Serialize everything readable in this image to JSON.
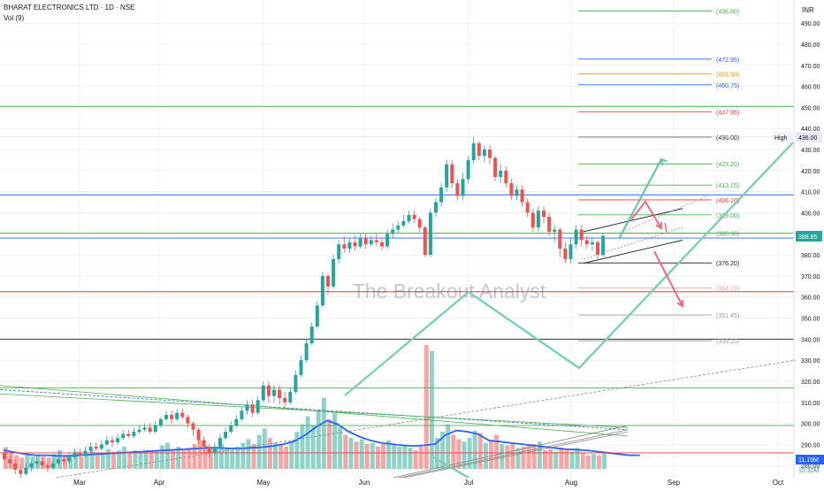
{
  "header": {
    "symbol": "BHARAT ELECTRONICS LTD · 1D · NSE",
    "volume_label": "Vol (9)",
    "currency": "INR"
  },
  "watermark": "The Breakout Analyst",
  "colors": {
    "up": "#26a69a",
    "down": "#ef5350",
    "vol_up": "#8fd3c8",
    "vol_down": "#f4a6a4",
    "vol_ma": "#2962ff",
    "grid": "#e6e8ec",
    "green_line": "#4caf50",
    "blue_line": "#2962ff",
    "red_line": "#f23645",
    "black_line": "#131722",
    "pattern": "#7ccfb5",
    "arrow_up": "#5fc3a4",
    "arrow_down": "#ef6a78",
    "orange": "#ff9800"
  },
  "chart_data": {
    "type": "candlestick",
    "title": "BHARAT ELECTRONICS LTD · 1D · NSE",
    "y_axis": {
      "unit": "INR",
      "range": [
        270,
        501
      ],
      "ticks": [
        490,
        480,
        470,
        460,
        450,
        440,
        430,
        420,
        410,
        400,
        390,
        380,
        370,
        360,
        350,
        340,
        330,
        320,
        310,
        300,
        290,
        280
      ]
    },
    "x_axis": {
      "ticks": [
        "Mar",
        "Apr",
        "May",
        "Jun",
        "Jul",
        "Aug",
        "Sep",
        "Oct"
      ]
    },
    "last_price": "388.85",
    "high_label": "High",
    "high_value": "436.00",
    "volume_readout": "11.15M",
    "volume_readout_2": "10.32M",
    "price_levels": [
      {
        "label": "(495.80)",
        "value": 495.8,
        "color": "#4caf50"
      },
      {
        "label": "(472.95)",
        "value": 472.95,
        "color": "#2962ff"
      },
      {
        "label": "(465.90)",
        "value": 465.9,
        "color": "#ff9800"
      },
      {
        "label": "(460.75)",
        "value": 460.75,
        "color": "#2962ff"
      },
      {
        "label": "(447.95)",
        "value": 447.95,
        "color": "#f23645"
      },
      {
        "label": "(436.00)",
        "value": 436.0,
        "color": "#131722"
      },
      {
        "label": "(423.20)",
        "value": 423.2,
        "color": "#4caf50"
      },
      {
        "label": "(413.15)",
        "value": 413.15,
        "color": "#4caf50"
      },
      {
        "label": "(406.10)",
        "value": 406.1,
        "color": "#f23645"
      },
      {
        "label": "(399.00)",
        "value": 399.0,
        "color": "#4caf50"
      },
      {
        "label": "(390.30)",
        "value": 390.3,
        "color": "#4caf50"
      },
      {
        "label": "(376.20)",
        "value": 376.2,
        "color": "#131722"
      },
      {
        "label": "(364.25)",
        "value": 364.25,
        "color": "#f4a6a4"
      },
      {
        "label": "(351.45)",
        "value": 351.45,
        "color": "#9e9e9e"
      },
      {
        "label": "(339.25)",
        "value": 339.25,
        "color": "#9e9e9e"
      }
    ],
    "horizontal_lines": [
      {
        "value": 450.5,
        "color": "#4caf50"
      },
      {
        "value": 408.5,
        "color": "#2962ff"
      },
      {
        "value": 390.3,
        "color": "#4caf50"
      },
      {
        "value": 388.0,
        "color": "#2962ff"
      },
      {
        "value": 362.5,
        "color": "#f23645"
      },
      {
        "value": 340.0,
        "color": "#131722"
      },
      {
        "value": 316.8,
        "color": "#4caf50"
      },
      {
        "value": 299.0,
        "color": "#4caf50"
      },
      {
        "value": 286.0,
        "color": "#f23645"
      }
    ],
    "candles": [
      [
        286,
        283,
        287,
        282
      ],
      [
        283,
        281,
        285,
        279
      ],
      [
        281,
        278,
        283,
        276
      ],
      [
        278,
        276,
        280,
        274
      ],
      [
        276,
        279,
        281,
        275
      ],
      [
        279,
        281,
        282,
        277
      ],
      [
        281,
        282,
        284,
        279
      ],
      [
        282,
        280,
        284,
        278
      ],
      [
        280,
        279,
        281,
        277
      ],
      [
        279,
        281,
        283,
        278
      ],
      [
        281,
        283,
        285,
        280
      ],
      [
        283,
        282,
        285,
        280
      ],
      [
        282,
        284,
        286,
        281
      ],
      [
        284,
        286,
        288,
        283
      ],
      [
        286,
        285,
        288,
        284
      ],
      [
        285,
        287,
        289,
        284
      ],
      [
        287,
        289,
        291,
        286
      ],
      [
        289,
        288,
        291,
        287
      ],
      [
        288,
        290,
        292,
        287
      ],
      [
        290,
        292,
        294,
        289
      ],
      [
        292,
        291,
        294,
        289
      ],
      [
        291,
        293,
        295,
        290
      ],
      [
        293,
        295,
        297,
        292
      ],
      [
        295,
        294,
        297,
        293
      ],
      [
        294,
        296,
        298,
        293
      ],
      [
        296,
        297,
        299,
        295
      ],
      [
        297,
        298,
        300,
        296
      ],
      [
        298,
        296,
        300,
        295
      ],
      [
        296,
        299,
        301,
        295
      ],
      [
        299,
        302,
        303,
        298
      ],
      [
        302,
        304,
        306,
        301
      ],
      [
        304,
        302,
        306,
        300
      ],
      [
        302,
        305,
        307,
        301
      ],
      [
        305,
        303,
        307,
        302
      ],
      [
        303,
        300,
        304,
        298
      ],
      [
        300,
        297,
        301,
        294
      ],
      [
        297,
        292,
        298,
        290
      ],
      [
        292,
        289,
        294,
        286
      ],
      [
        289,
        286,
        290,
        284
      ],
      [
        286,
        289,
        291,
        285
      ],
      [
        289,
        293,
        295,
        288
      ],
      [
        293,
        296,
        298,
        292
      ],
      [
        296,
        299,
        301,
        295
      ],
      [
        299,
        302,
        304,
        298
      ],
      [
        302,
        306,
        308,
        301
      ],
      [
        306,
        309,
        311,
        304
      ],
      [
        309,
        305,
        311,
        303
      ],
      [
        305,
        311,
        313,
        304
      ],
      [
        311,
        318,
        320,
        310
      ],
      [
        318,
        313,
        320,
        310
      ],
      [
        313,
        316,
        318,
        310
      ],
      [
        316,
        312,
        318,
        309
      ],
      [
        312,
        310,
        315,
        307
      ],
      [
        310,
        315,
        317,
        309
      ],
      [
        315,
        323,
        325,
        314
      ],
      [
        323,
        330,
        332,
        322
      ],
      [
        330,
        338,
        340,
        329
      ],
      [
        338,
        346,
        348,
        337
      ],
      [
        346,
        356,
        358,
        345
      ],
      [
        356,
        370,
        372,
        355
      ],
      [
        370,
        365,
        371,
        361
      ],
      [
        365,
        378,
        380,
        364
      ],
      [
        378,
        385,
        387,
        376
      ],
      [
        385,
        383,
        389,
        381
      ],
      [
        383,
        386,
        388,
        381
      ],
      [
        386,
        384,
        389,
        382
      ],
      [
        384,
        388,
        390,
        383
      ],
      [
        388,
        385,
        390,
        383
      ],
      [
        385,
        387,
        389,
        384
      ],
      [
        387,
        386,
        390,
        384
      ],
      [
        386,
        384,
        388,
        382
      ],
      [
        384,
        390,
        392,
        383
      ],
      [
        390,
        392,
        395,
        388
      ],
      [
        392,
        394,
        396,
        390
      ],
      [
        394,
        396,
        399,
        393
      ],
      [
        396,
        399,
        401,
        395
      ],
      [
        399,
        397,
        401,
        395
      ],
      [
        397,
        393,
        398,
        391
      ],
      [
        393,
        380,
        394,
        379
      ],
      [
        380,
        400,
        402,
        379
      ],
      [
        400,
        405,
        407,
        398
      ],
      [
        405,
        412,
        414,
        403
      ],
      [
        412,
        423,
        425,
        410
      ],
      [
        423,
        414,
        425,
        412
      ],
      [
        414,
        408,
        416,
        406
      ],
      [
        408,
        416,
        419,
        406
      ],
      [
        416,
        425,
        427,
        414
      ],
      [
        425,
        433,
        436,
        423
      ],
      [
        433,
        427,
        434,
        425
      ],
      [
        427,
        430,
        432,
        424
      ],
      [
        430,
        426,
        432,
        423
      ],
      [
        426,
        417,
        427,
        415
      ],
      [
        417,
        420,
        423,
        414
      ],
      [
        420,
        414,
        422,
        412
      ],
      [
        414,
        408,
        416,
        406
      ],
      [
        408,
        411,
        413,
        406
      ],
      [
        411,
        405,
        413,
        403
      ],
      [
        405,
        400,
        407,
        398
      ],
      [
        400,
        393,
        402,
        391
      ],
      [
        393,
        401,
        403,
        391
      ],
      [
        401,
        398,
        403,
        395
      ],
      [
        398,
        391,
        400,
        389
      ],
      [
        391,
        392,
        394,
        386
      ],
      [
        392,
        383,
        393,
        379
      ],
      [
        383,
        378,
        386,
        376
      ],
      [
        378,
        385,
        388,
        376
      ],
      [
        385,
        392,
        394,
        383
      ],
      [
        392,
        387,
        394,
        384
      ],
      [
        387,
        385,
        389,
        383
      ],
      [
        385,
        386,
        388,
        382
      ],
      [
        386,
        380,
        387,
        378
      ],
      [
        380,
        389,
        390,
        379
      ]
    ],
    "volume": [
      [
        0.35,
        0
      ],
      [
        0.28,
        0
      ],
      [
        0.22,
        0
      ],
      [
        0.18,
        0
      ],
      [
        0.25,
        1
      ],
      [
        0.2,
        1
      ],
      [
        0.22,
        1
      ],
      [
        0.2,
        0
      ],
      [
        0.18,
        0
      ],
      [
        0.24,
        1
      ],
      [
        0.3,
        1
      ],
      [
        0.2,
        0
      ],
      [
        0.22,
        1
      ],
      [
        0.28,
        1
      ],
      [
        0.2,
        0
      ],
      [
        0.24,
        1
      ],
      [
        0.3,
        1
      ],
      [
        0.22,
        0
      ],
      [
        0.25,
        1
      ],
      [
        0.32,
        1
      ],
      [
        0.28,
        0
      ],
      [
        0.3,
        1
      ],
      [
        0.36,
        1
      ],
      [
        0.28,
        0
      ],
      [
        0.3,
        1
      ],
      [
        0.26,
        1
      ],
      [
        0.3,
        1
      ],
      [
        0.28,
        0
      ],
      [
        0.3,
        1
      ],
      [
        0.38,
        1
      ],
      [
        0.42,
        1
      ],
      [
        0.32,
        0
      ],
      [
        0.36,
        1
      ],
      [
        0.3,
        0
      ],
      [
        0.34,
        0
      ],
      [
        0.4,
        0
      ],
      [
        0.46,
        0
      ],
      [
        0.38,
        0
      ],
      [
        0.32,
        0
      ],
      [
        0.35,
        1
      ],
      [
        0.4,
        1
      ],
      [
        0.34,
        1
      ],
      [
        0.3,
        1
      ],
      [
        0.36,
        1
      ],
      [
        0.42,
        1
      ],
      [
        0.48,
        1
      ],
      [
        0.4,
        0
      ],
      [
        0.55,
        1
      ],
      [
        0.65,
        1
      ],
      [
        0.5,
        0
      ],
      [
        0.42,
        1
      ],
      [
        0.4,
        0
      ],
      [
        0.36,
        0
      ],
      [
        0.44,
        1
      ],
      [
        0.6,
        1
      ],
      [
        0.72,
        1
      ],
      [
        0.85,
        1
      ],
      [
        0.7,
        1
      ],
      [
        0.95,
        1
      ],
      [
        1.15,
        1
      ],
      [
        0.8,
        0
      ],
      [
        0.9,
        1
      ],
      [
        0.68,
        1
      ],
      [
        0.55,
        0
      ],
      [
        0.5,
        1
      ],
      [
        0.44,
        0
      ],
      [
        0.48,
        1
      ],
      [
        0.4,
        0
      ],
      [
        0.42,
        1
      ],
      [
        0.36,
        0
      ],
      [
        0.4,
        0
      ],
      [
        0.46,
        1
      ],
      [
        0.4,
        1
      ],
      [
        0.36,
        1
      ],
      [
        0.38,
        1
      ],
      [
        0.34,
        1
      ],
      [
        0.3,
        0
      ],
      [
        0.36,
        0
      ],
      [
        2.0,
        0
      ],
      [
        1.9,
        1
      ],
      [
        0.5,
        1
      ],
      [
        0.6,
        1
      ],
      [
        0.72,
        1
      ],
      [
        0.55,
        0
      ],
      [
        0.48,
        0
      ],
      [
        0.44,
        1
      ],
      [
        0.5,
        1
      ],
      [
        0.62,
        1
      ],
      [
        0.58,
        0
      ],
      [
        0.42,
        1
      ],
      [
        0.46,
        0
      ],
      [
        0.55,
        0
      ],
      [
        0.4,
        1
      ],
      [
        0.38,
        0
      ],
      [
        0.42,
        0
      ],
      [
        0.34,
        1
      ],
      [
        0.36,
        0
      ],
      [
        0.38,
        0
      ],
      [
        0.4,
        0
      ],
      [
        0.44,
        1
      ],
      [
        0.3,
        0
      ],
      [
        0.32,
        0
      ],
      [
        0.28,
        1
      ],
      [
        0.34,
        0
      ],
      [
        0.3,
        0
      ],
      [
        0.28,
        1
      ],
      [
        0.34,
        1
      ],
      [
        0.26,
        0
      ],
      [
        0.22,
        0
      ],
      [
        0.24,
        1
      ],
      [
        0.22,
        0
      ],
      [
        0.26,
        1
      ]
    ],
    "volume_ma": [
      0.3,
      0.27,
      0.24,
      0.22,
      0.22,
      0.21,
      0.21,
      0.22,
      0.23,
      0.24,
      0.25,
      0.26,
      0.27,
      0.28,
      0.29,
      0.3,
      0.31,
      0.32,
      0.33,
      0.34,
      0.34,
      0.33,
      0.33,
      0.34,
      0.35,
      0.37,
      0.4,
      0.45,
      0.55,
      0.68,
      0.78,
      0.72,
      0.6,
      0.52,
      0.46,
      0.42,
      0.4,
      0.38,
      0.37,
      0.38,
      0.4,
      0.55,
      0.62,
      0.6,
      0.56,
      0.46,
      0.44,
      0.42,
      0.4,
      0.38,
      0.36,
      0.34,
      0.32,
      0.31,
      0.3,
      0.28,
      0.26,
      0.24,
      0.22,
      0.22
    ]
  }
}
